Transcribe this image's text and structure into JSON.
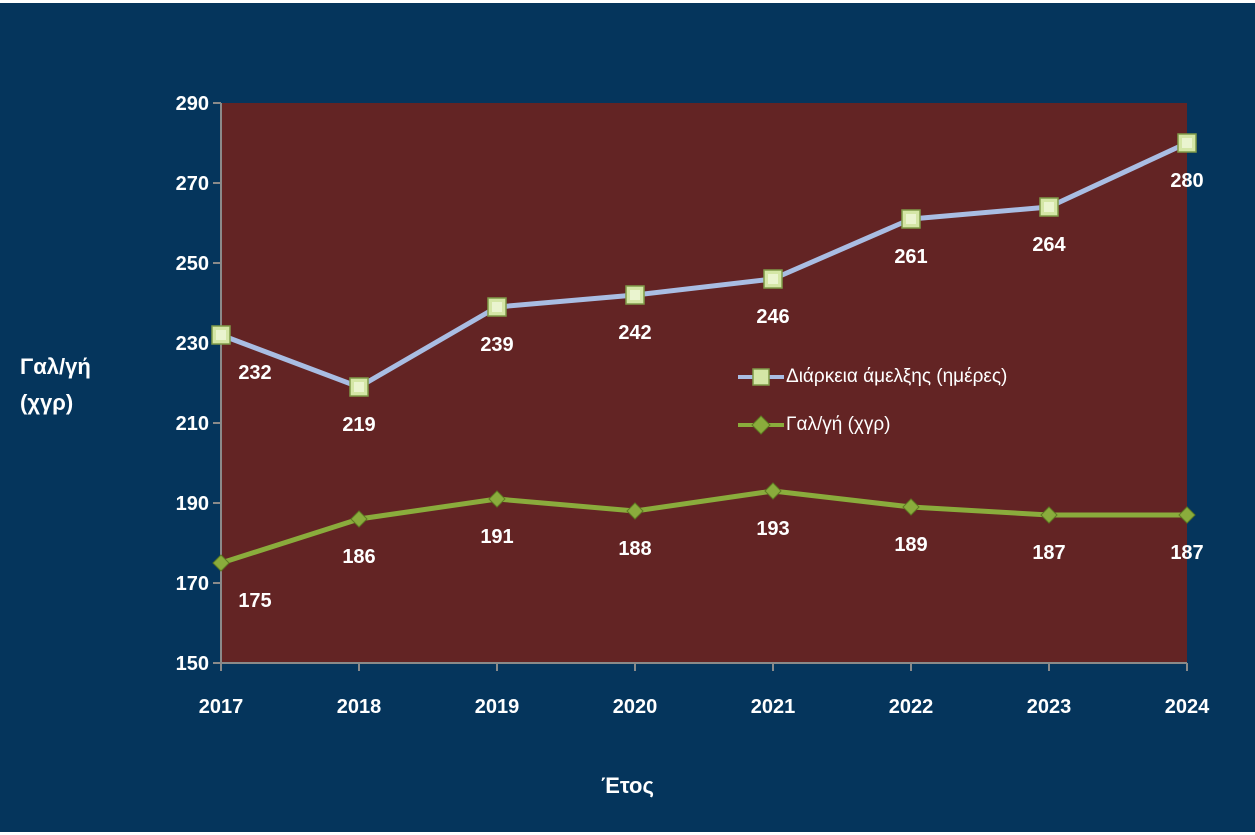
{
  "chart_data": {
    "type": "line",
    "categories": [
      "2017",
      "2018",
      "2019",
      "2020",
      "2021",
      "2022",
      "2023",
      "2024"
    ],
    "series": [
      {
        "name": "Διάρκεια άμελξης (ημέρες)",
        "values": [
          232,
          219,
          239,
          242,
          246,
          261,
          264,
          280
        ],
        "line_color": "#a9bde3",
        "marker": "square",
        "marker_color": "#d4e6a6",
        "label_position": "below"
      },
      {
        "name": "Γαλ/γή (χγρ)",
        "values": [
          175,
          186,
          191,
          188,
          193,
          189,
          187,
          187
        ],
        "line_color": "#8aac3c",
        "marker": "diamond",
        "marker_color": "#8aac3c",
        "label_position": "below"
      }
    ],
    "ylabel_lines": [
      "Γαλ/γή",
      "(χγρ)"
    ],
    "xlabel": "Έτος",
    "ylim": [
      150,
      290
    ],
    "yticks": [
      150,
      170,
      190,
      210,
      230,
      250,
      270,
      290
    ],
    "grid": false,
    "legend_position": "center-right",
    "plot_background": "#632424",
    "page_background": "#05355c"
  }
}
